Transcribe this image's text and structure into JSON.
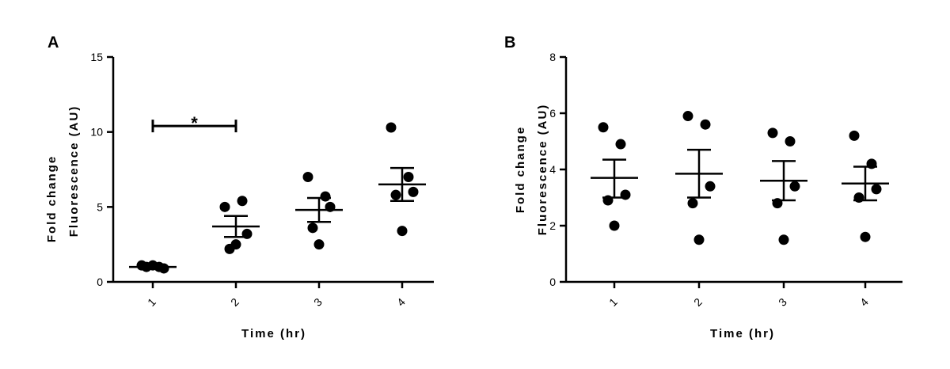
{
  "chart_data": [
    {
      "type": "scatter",
      "panel_label": "A",
      "categories": [
        "1",
        "2",
        "3",
        "4"
      ],
      "xlabel": "Time (hr)",
      "ylabel": [
        "Fold change",
        "Fluorescence (AU)"
      ],
      "ylim": [
        0,
        15
      ],
      "yticks": [
        0,
        5,
        10,
        15
      ],
      "series": [
        {
          "category": "1",
          "points": [
            1.1,
            1.0,
            0.9,
            1.0,
            1.1
          ],
          "mean": 1.0,
          "sem_low": 0.95,
          "sem_high": 1.05
        },
        {
          "category": "2",
          "points": [
            5.0,
            5.4,
            3.2,
            2.2,
            2.5
          ],
          "mean": 3.7,
          "sem_low": 3.0,
          "sem_high": 4.4
        },
        {
          "category": "3",
          "points": [
            7.0,
            5.7,
            5.0,
            3.6,
            2.5
          ],
          "mean": 4.8,
          "sem_low": 4.0,
          "sem_high": 5.6
        },
        {
          "category": "4",
          "points": [
            10.3,
            7.0,
            6.0,
            5.8,
            3.4
          ],
          "mean": 6.5,
          "sem_low": 5.4,
          "sem_high": 7.6
        }
      ],
      "significance": {
        "from": "1",
        "to": "2",
        "y": 10.4,
        "label": "*"
      },
      "grid": false,
      "legend": "none"
    },
    {
      "type": "scatter",
      "panel_label": "B",
      "categories": [
        "1",
        "2",
        "3",
        "4"
      ],
      "xlabel": "Time (hr)",
      "ylabel": [
        "Fold change",
        "Fluorescence (AU)"
      ],
      "ylim": [
        0,
        8
      ],
      "yticks": [
        0,
        2,
        4,
        6,
        8
      ],
      "series": [
        {
          "category": "1",
          "points": [
            5.5,
            4.9,
            3.1,
            2.9,
            2.0
          ],
          "mean": 3.7,
          "sem_low": 3.0,
          "sem_high": 4.35
        },
        {
          "category": "2",
          "points": [
            5.9,
            5.6,
            3.4,
            2.8,
            1.5
          ],
          "mean": 3.85,
          "sem_low": 3.0,
          "sem_high": 4.7
        },
        {
          "category": "3",
          "points": [
            5.3,
            5.0,
            3.4,
            2.8,
            1.5
          ],
          "mean": 3.6,
          "sem_low": 2.9,
          "sem_high": 4.3
        },
        {
          "category": "4",
          "points": [
            5.2,
            4.2,
            3.3,
            3.0,
            1.6
          ],
          "mean": 3.5,
          "sem_low": 2.9,
          "sem_high": 4.1
        }
      ],
      "grid": false,
      "legend": "none"
    }
  ]
}
